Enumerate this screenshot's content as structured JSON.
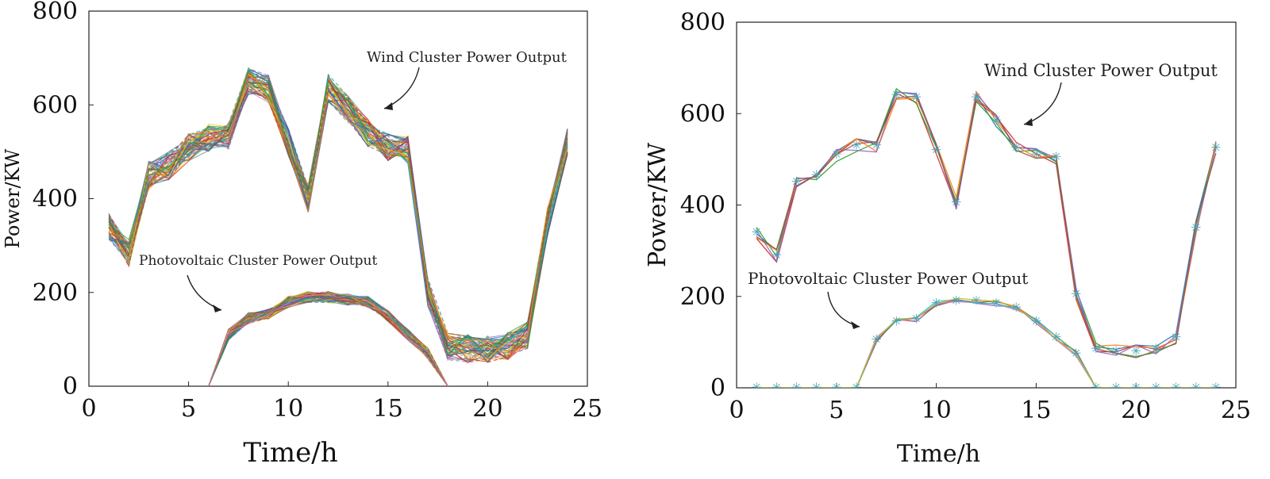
{
  "chart_data": [
    {
      "type": "line",
      "panel": "left",
      "description_kind": "scenario bundle",
      "xlabel": "Time/h",
      "ylabel": "Power/KW",
      "xlim": [
        0,
        25
      ],
      "ylim": [
        0,
        800
      ],
      "xticks": [
        "0",
        "5",
        "10",
        "15",
        "20",
        "25"
      ],
      "yticks": [
        "0",
        "200",
        "400",
        "600",
        "800"
      ],
      "grid": false,
      "annotations": {
        "wind": "Wind Cluster Power Output",
        "pv": "Photovoltaic Cluster Power Output"
      },
      "series": [
        {
          "name": "Wind Cluster Power Output",
          "x": [
            1,
            2,
            3,
            4,
            5,
            6,
            7,
            8,
            9,
            10,
            11,
            12,
            13,
            14,
            15,
            16,
            17,
            18,
            19,
            20,
            21,
            22,
            23,
            24
          ],
          "values": [
            340,
            285,
            450,
            470,
            510,
            530,
            535,
            650,
            635,
            520,
            400,
            635,
            590,
            540,
            510,
            505,
            200,
            85,
            80,
            80,
            85,
            110,
            350,
            520
          ],
          "band": 30
        },
        {
          "name": "Photovoltaic Cluster Power Output",
          "x": [
            6,
            7,
            8,
            9,
            10,
            11,
            12,
            13,
            14,
            15,
            16,
            17,
            18
          ],
          "values": [
            0,
            110,
            145,
            155,
            180,
            190,
            190,
            185,
            180,
            150,
            110,
            70,
            0
          ],
          "band": 12
        }
      ]
    },
    {
      "type": "line",
      "panel": "right",
      "description_kind": "reduced scenarios",
      "xlabel": "Time/h",
      "ylabel": "Power/KW",
      "xlim": [
        0,
        25
      ],
      "ylim": [
        0,
        800
      ],
      "xticks": [
        "0",
        "5",
        "10",
        "15",
        "20",
        "25"
      ],
      "yticks": [
        "0",
        "200",
        "400",
        "600",
        "800"
      ],
      "grid": false,
      "annotations": {
        "wind": "Wind Cluster Power Output",
        "pv": "Photovoltaic Cluster Power Output"
      },
      "series": [
        {
          "name": "Wind Cluster Power Output",
          "x": [
            1,
            2,
            3,
            4,
            5,
            6,
            7,
            8,
            9,
            10,
            11,
            12,
            13,
            14,
            15,
            16,
            17,
            18,
            19,
            20,
            21,
            22,
            23,
            24
          ],
          "values": [
            340,
            290,
            450,
            465,
            510,
            530,
            530,
            640,
            635,
            520,
            405,
            635,
            585,
            525,
            510,
            505,
            205,
            85,
            80,
            80,
            85,
            110,
            350,
            525
          ],
          "band": 15
        },
        {
          "name": "Photovoltaic Cluster Power Output",
          "x": [
            1,
            2,
            3,
            4,
            5,
            6,
            7,
            8,
            9,
            10,
            11,
            12,
            13,
            14,
            15,
            16,
            17,
            18,
            19,
            20,
            21,
            22,
            23,
            24
          ],
          "values": [
            0,
            0,
            0,
            0,
            0,
            0,
            105,
            145,
            150,
            185,
            190,
            190,
            185,
            175,
            145,
            110,
            75,
            0,
            0,
            0,
            0,
            0,
            0,
            0
          ],
          "band": 6
        }
      ]
    }
  ]
}
